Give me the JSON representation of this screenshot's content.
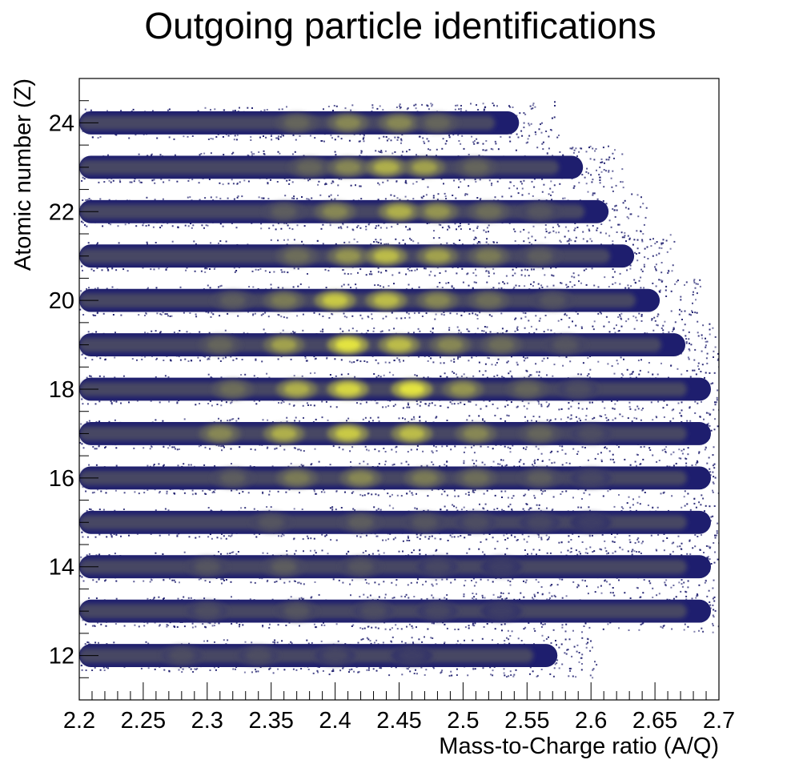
{
  "chart_data": {
    "type": "heatmap",
    "title": "Outgoing particle identifications",
    "xlabel": "Mass-to-Charge ratio (A/Q)",
    "ylabel": "Atomic number (Z)",
    "xlim": [
      2.2,
      2.7
    ],
    "ylim": [
      11,
      25
    ],
    "x_ticks": [
      "2.2",
      "2.25",
      "2.3",
      "2.35",
      "2.4",
      "2.45",
      "2.5",
      "2.55",
      "2.6",
      "2.65",
      "2.7"
    ],
    "y_ticks": [
      "12",
      "14",
      "16",
      "18",
      "20",
      "22",
      "24"
    ],
    "grid": false,
    "legend": false,
    "colors": {
      "low": "#1e1e6e",
      "mid": "#6d6d5a",
      "high": "#f0f03c",
      "background": "#ffffff"
    },
    "series": [
      {
        "z": 24,
        "peaks": [
          [
            2.37,
            0.45
          ],
          [
            2.41,
            0.6
          ],
          [
            2.45,
            0.6
          ],
          [
            2.48,
            0.45
          ]
        ],
        "range": [
          2.2,
          2.55
        ]
      },
      {
        "z": 23,
        "peaks": [
          [
            2.38,
            0.45
          ],
          [
            2.41,
            0.6
          ],
          [
            2.44,
            0.75
          ],
          [
            2.47,
            0.7
          ],
          [
            2.51,
            0.45
          ]
        ],
        "range": [
          2.2,
          2.6
        ]
      },
      {
        "z": 22,
        "peaks": [
          [
            2.36,
            0.4
          ],
          [
            2.4,
            0.6
          ],
          [
            2.45,
            0.75
          ],
          [
            2.48,
            0.65
          ],
          [
            2.52,
            0.5
          ],
          [
            2.56,
            0.35
          ]
        ],
        "range": [
          2.2,
          2.62
        ]
      },
      {
        "z": 21,
        "peaks": [
          [
            2.37,
            0.5
          ],
          [
            2.41,
            0.65
          ],
          [
            2.44,
            0.8
          ],
          [
            2.48,
            0.7
          ],
          [
            2.52,
            0.55
          ],
          [
            2.56,
            0.4
          ]
        ],
        "range": [
          2.2,
          2.64
        ]
      },
      {
        "z": 20,
        "peaks": [
          [
            2.32,
            0.4
          ],
          [
            2.36,
            0.55
          ],
          [
            2.4,
            0.85
          ],
          [
            2.44,
            0.8
          ],
          [
            2.48,
            0.6
          ],
          [
            2.52,
            0.5
          ],
          [
            2.57,
            0.35
          ]
        ],
        "range": [
          2.2,
          2.66
        ]
      },
      {
        "z": 19,
        "peaks": [
          [
            2.31,
            0.45
          ],
          [
            2.36,
            0.7
          ],
          [
            2.41,
            0.95
          ],
          [
            2.45,
            0.8
          ],
          [
            2.49,
            0.6
          ],
          [
            2.53,
            0.5
          ],
          [
            2.58,
            0.35
          ]
        ],
        "range": [
          2.2,
          2.68
        ]
      },
      {
        "z": 18,
        "peaks": [
          [
            2.32,
            0.5
          ],
          [
            2.37,
            0.75
          ],
          [
            2.41,
            0.9
          ],
          [
            2.46,
            0.95
          ],
          [
            2.5,
            0.65
          ],
          [
            2.55,
            0.45
          ],
          [
            2.59,
            0.3
          ]
        ],
        "range": [
          2.2,
          2.7
        ]
      },
      {
        "z": 17,
        "peaks": [
          [
            2.31,
            0.6
          ],
          [
            2.36,
            0.75
          ],
          [
            2.41,
            0.85
          ],
          [
            2.46,
            0.8
          ],
          [
            2.51,
            0.6
          ],
          [
            2.56,
            0.45
          ],
          [
            2.6,
            0.3
          ]
        ],
        "range": [
          2.2,
          2.7
        ]
      },
      {
        "z": 16,
        "peaks": [
          [
            2.32,
            0.4
          ],
          [
            2.37,
            0.55
          ],
          [
            2.42,
            0.6
          ],
          [
            2.47,
            0.55
          ],
          [
            2.51,
            0.5
          ],
          [
            2.56,
            0.4
          ],
          [
            2.6,
            0.25
          ]
        ],
        "range": [
          2.2,
          2.7
        ]
      },
      {
        "z": 15,
        "peaks": [
          [
            2.35,
            0.35
          ],
          [
            2.42,
            0.4
          ],
          [
            2.47,
            0.35
          ],
          [
            2.51,
            0.3
          ],
          [
            2.56,
            0.25
          ],
          [
            2.6,
            0.2
          ]
        ],
        "range": [
          2.2,
          2.7
        ]
      },
      {
        "z": 14,
        "peaks": [
          [
            2.3,
            0.35
          ],
          [
            2.36,
            0.4
          ],
          [
            2.42,
            0.35
          ],
          [
            2.48,
            0.25
          ],
          [
            2.53,
            0.2
          ]
        ],
        "range": [
          2.2,
          2.7
        ]
      },
      {
        "z": 13,
        "peaks": [
          [
            2.3,
            0.3
          ],
          [
            2.37,
            0.35
          ],
          [
            2.43,
            0.3
          ],
          [
            2.48,
            0.25
          ],
          [
            2.53,
            0.2
          ]
        ],
        "range": [
          2.2,
          2.7
        ]
      },
      {
        "z": 12,
        "peaks": [
          [
            2.28,
            0.3
          ],
          [
            2.34,
            0.3
          ],
          [
            2.4,
            0.25
          ],
          [
            2.46,
            0.2
          ]
        ],
        "range": [
          2.2,
          2.58
        ]
      }
    ]
  }
}
